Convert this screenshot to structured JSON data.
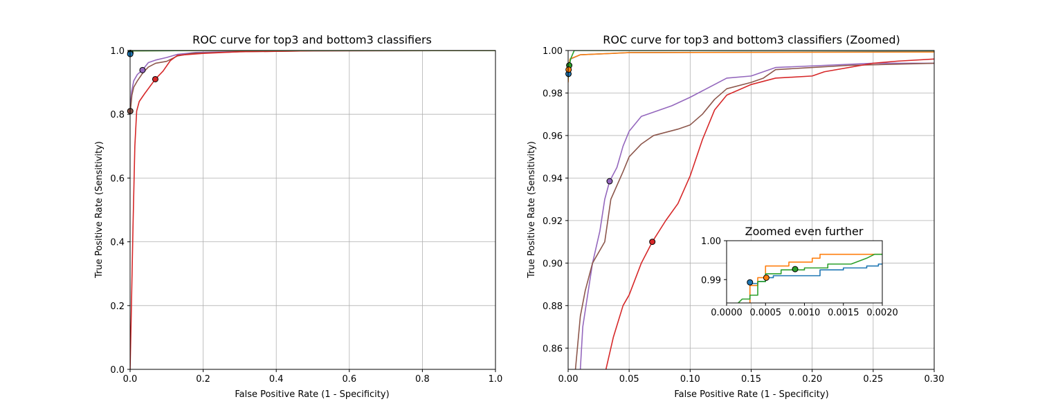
{
  "colors": {
    "blue": "#1f77b4",
    "orange": "#ff7f0e",
    "green": "#2ca02c",
    "red": "#d62728",
    "purple": "#9467bd",
    "brown": "#8c564b",
    "grid": "#b0b0b0",
    "background": "#ffffff"
  },
  "chart_data": [
    {
      "type": "line",
      "title": "ROC curve for top3 and bottom3 classifiers",
      "xlabel": "False Positive Rate (1 - Specificity)",
      "ylabel": "True Positive Rate (Sensitivity)",
      "xlim": [
        0,
        1
      ],
      "ylim": [
        0,
        1
      ],
      "grid": true,
      "xticks": [
        0.0,
        0.2,
        0.4,
        0.6,
        0.8,
        1.0
      ],
      "xtick_labels": [
        "0.0",
        "0.2",
        "0.4",
        "0.6",
        "0.8",
        "1.0"
      ],
      "yticks": [
        0.0,
        0.2,
        0.4,
        0.6,
        0.8,
        1.0
      ],
      "ytick_labels": [
        "0.0",
        "0.2",
        "0.4",
        "0.6",
        "0.8",
        "1.0"
      ],
      "series": [
        {
          "name": "purple",
          "color": "purple",
          "points": [
            [
              0,
              0.81
            ],
            [
              0.004,
              0.87
            ],
            [
              0.01,
              0.905
            ],
            [
              0.02,
              0.925
            ],
            [
              0.034,
              0.939
            ],
            [
              0.05,
              0.962
            ],
            [
              0.07,
              0.97
            ],
            [
              0.1,
              0.978
            ],
            [
              0.13,
              0.988
            ],
            [
              0.18,
              0.994
            ],
            [
              0.3,
              0.997
            ],
            [
              0.5,
              0.999
            ],
            [
              1,
              1
            ]
          ]
        },
        {
          "name": "brown",
          "color": "brown",
          "points": [
            [
              0,
              0.8
            ],
            [
              0.005,
              0.86
            ],
            [
              0.01,
              0.885
            ],
            [
              0.02,
              0.905
            ],
            [
              0.035,
              0.93
            ],
            [
              0.05,
              0.948
            ],
            [
              0.07,
              0.96
            ],
            [
              0.1,
              0.966
            ],
            [
              0.13,
              0.983
            ],
            [
              0.17,
              0.991
            ],
            [
              0.3,
              0.996
            ],
            [
              0.5,
              0.999
            ],
            [
              1,
              1
            ]
          ]
        },
        {
          "name": "red",
          "color": "red",
          "points": [
            [
              0,
              0
            ],
            [
              0.003,
              0.16
            ],
            [
              0.008,
              0.45
            ],
            [
              0.013,
              0.7
            ],
            [
              0.018,
              0.81
            ],
            [
              0.025,
              0.84
            ],
            [
              0.04,
              0.865
            ],
            [
              0.069,
              0.91
            ],
            [
              0.09,
              0.935
            ],
            [
              0.11,
              0.968
            ],
            [
              0.13,
              0.985
            ],
            [
              0.2,
              0.991
            ],
            [
              0.3,
              0.996
            ],
            [
              0.5,
              0.999
            ],
            [
              1,
              1
            ]
          ]
        },
        {
          "name": "blue",
          "color": "blue",
          "points": [
            [
              0,
              0.985
            ],
            [
              0.0003,
              0.989
            ],
            [
              0.002,
              0.996
            ],
            [
              0.01,
              0.999
            ],
            [
              0.2,
              1
            ],
            [
              1,
              1
            ]
          ]
        },
        {
          "name": "orange",
          "color": "orange",
          "points": [
            [
              0,
              0.985
            ],
            [
              0.0004,
              0.99
            ],
            [
              0.0015,
              0.997
            ],
            [
              0.01,
              0.999
            ],
            [
              0.2,
              1
            ],
            [
              1,
              1
            ]
          ]
        },
        {
          "name": "green",
          "color": "green",
          "points": [
            [
              0,
              0.988
            ],
            [
              0.0009,
              0.993
            ],
            [
              0.002,
              0.996
            ],
            [
              0.01,
              0.999
            ],
            [
              0.2,
              1
            ],
            [
              1,
              1
            ]
          ]
        }
      ],
      "markers": [
        {
          "series": "green",
          "x": 0.0009,
          "y": 0.9925
        },
        {
          "series": "blue",
          "x": 0.0003,
          "y": 0.989
        },
        {
          "series": "purple",
          "x": 0.034,
          "y": 0.9385
        },
        {
          "series": "red",
          "x": 0.069,
          "y": 0.91
        },
        {
          "series": "brown",
          "x": 0.0005,
          "y": 0.81
        }
      ]
    },
    {
      "type": "line",
      "title": "ROC curve for top3 and bottom3 classifiers (Zoomed)",
      "xlabel": "False Positive Rate (1 - Specificity)",
      "ylabel": "True Positive Rate (Sensitivity)",
      "xlim": [
        0,
        0.3
      ],
      "ylim": [
        0.85,
        1.0
      ],
      "grid": true,
      "xticks": [
        0.0,
        0.05,
        0.1,
        0.15,
        0.2,
        0.25,
        0.3
      ],
      "xtick_labels": [
        "0.00",
        "0.05",
        "0.10",
        "0.15",
        "0.20",
        "0.25",
        "0.30"
      ],
      "yticks": [
        0.86,
        0.88,
        0.9,
        0.92,
        0.94,
        0.96,
        0.98,
        1.0
      ],
      "ytick_labels": [
        "0.86",
        "0.88",
        "0.90",
        "0.92",
        "0.94",
        "0.96",
        "0.98",
        "1.00"
      ],
      "series": [
        {
          "name": "purple",
          "color": "purple",
          "points": [
            [
              0.01,
              0.85
            ],
            [
              0.012,
              0.87
            ],
            [
              0.016,
              0.885
            ],
            [
              0.02,
              0.9
            ],
            [
              0.026,
              0.915
            ],
            [
              0.03,
              0.93
            ],
            [
              0.034,
              0.9385
            ],
            [
              0.04,
              0.945
            ],
            [
              0.045,
              0.955
            ],
            [
              0.05,
              0.962
            ],
            [
              0.06,
              0.969
            ],
            [
              0.07,
              0.971
            ],
            [
              0.085,
              0.974
            ],
            [
              0.1,
              0.978
            ],
            [
              0.11,
              0.981
            ],
            [
              0.13,
              0.987
            ],
            [
              0.15,
              0.988
            ],
            [
              0.17,
              0.992
            ],
            [
              0.21,
              0.993
            ],
            [
              0.25,
              0.994
            ],
            [
              0.3,
              0.994
            ]
          ]
        },
        {
          "name": "brown",
          "color": "brown",
          "points": [
            [
              0.006,
              0.85
            ],
            [
              0.01,
              0.875
            ],
            [
              0.014,
              0.887
            ],
            [
              0.02,
              0.9
            ],
            [
              0.03,
              0.91
            ],
            [
              0.035,
              0.93
            ],
            [
              0.045,
              0.943
            ],
            [
              0.05,
              0.95
            ],
            [
              0.06,
              0.956
            ],
            [
              0.07,
              0.96
            ],
            [
              0.09,
              0.963
            ],
            [
              0.1,
              0.965
            ],
            [
              0.11,
              0.97
            ],
            [
              0.12,
              0.977
            ],
            [
              0.13,
              0.982
            ],
            [
              0.15,
              0.985
            ],
            [
              0.16,
              0.987
            ],
            [
              0.17,
              0.991
            ],
            [
              0.2,
              0.992
            ],
            [
              0.23,
              0.993
            ],
            [
              0.3,
              0.994
            ]
          ]
        },
        {
          "name": "red",
          "color": "red",
          "points": [
            [
              0.031,
              0.85
            ],
            [
              0.037,
              0.865
            ],
            [
              0.045,
              0.88
            ],
            [
              0.05,
              0.885
            ],
            [
              0.06,
              0.9
            ],
            [
              0.069,
              0.91
            ],
            [
              0.08,
              0.92
            ],
            [
              0.09,
              0.928
            ],
            [
              0.1,
              0.941
            ],
            [
              0.11,
              0.958
            ],
            [
              0.12,
              0.972
            ],
            [
              0.13,
              0.979
            ],
            [
              0.15,
              0.984
            ],
            [
              0.17,
              0.987
            ],
            [
              0.2,
              0.988
            ],
            [
              0.21,
              0.99
            ],
            [
              0.25,
              0.994
            ],
            [
              0.27,
              0.995
            ],
            [
              0.3,
              0.996
            ]
          ]
        },
        {
          "name": "blue",
          "color": "blue",
          "points": [
            [
              0,
              0.987
            ],
            [
              0.0003,
              0.989
            ],
            [
              0.0005,
              0.991
            ],
            [
              0.002,
              0.996
            ],
            [
              0.01,
              0.998
            ],
            [
              0.05,
              0.999
            ],
            [
              0.3,
              0.9995
            ]
          ]
        },
        {
          "name": "orange",
          "color": "orange",
          "points": [
            [
              0,
              0.985
            ],
            [
              0.0004,
              0.9905
            ],
            [
              0.0006,
              0.993
            ],
            [
              0.0015,
              0.996
            ],
            [
              0.01,
              0.998
            ],
            [
              0.05,
              0.999
            ],
            [
              0.3,
              0.9993
            ]
          ]
        },
        {
          "name": "green",
          "color": "green",
          "points": [
            [
              0,
              0.987
            ],
            [
              0.0009,
              0.9925
            ],
            [
              0.002,
              0.996
            ],
            [
              0.005,
              1.0
            ],
            [
              0.3,
              1.0
            ]
          ]
        }
      ],
      "markers": [
        {
          "series": "purple",
          "x": 0.034,
          "y": 0.9385
        },
        {
          "series": "red",
          "x": 0.069,
          "y": 0.91
        },
        {
          "series": "green",
          "x": 0.0009,
          "y": 0.993
        },
        {
          "series": "blue",
          "x": 0.0003,
          "y": 0.989
        },
        {
          "series": "orange",
          "x": 0.0004,
          "y": 0.991
        }
      ]
    },
    {
      "type": "line",
      "title": "Zoomed even further",
      "xlabel": "",
      "ylabel": "",
      "xlim": [
        0,
        0.002
      ],
      "ylim": [
        0.984,
        1.0
      ],
      "grid": false,
      "xticks": [
        0.0,
        0.0005,
        0.001,
        0.0015,
        0.002
      ],
      "xtick_labels": [
        "0.0000",
        "0.0005",
        "0.0010",
        "0.0015",
        "0.0020"
      ],
      "yticks": [
        0.99,
        1.0
      ],
      "ytick_labels": [
        "0.99",
        "1.00"
      ],
      "series": [
        {
          "name": "blue",
          "color": "blue",
          "points": [
            [
              0.0003,
              0.984
            ],
            [
              0.0003,
              0.989
            ],
            [
              0.0004,
              0.989
            ],
            [
              0.0004,
              0.9895
            ],
            [
              0.0005,
              0.9895
            ],
            [
              0.0005,
              0.9905
            ],
            [
              0.0006,
              0.9905
            ],
            [
              0.0006,
              0.991
            ],
            [
              0.0012,
              0.991
            ],
            [
              0.0012,
              0.9925
            ],
            [
              0.0015,
              0.9925
            ],
            [
              0.0015,
              0.993
            ],
            [
              0.0018,
              0.993
            ],
            [
              0.0018,
              0.9935
            ],
            [
              0.00195,
              0.9935
            ],
            [
              0.00195,
              0.994
            ],
            [
              0.002,
              0.994
            ]
          ]
        },
        {
          "name": "orange",
          "color": "orange",
          "points": [
            [
              0.0003,
              0.984
            ],
            [
              0.0003,
              0.9885
            ],
            [
              0.0004,
              0.9885
            ],
            [
              0.0004,
              0.9905
            ],
            [
              0.0005,
              0.9905
            ],
            [
              0.0005,
              0.9935
            ],
            [
              0.0008,
              0.9935
            ],
            [
              0.0008,
              0.9945
            ],
            [
              0.0011,
              0.9945
            ],
            [
              0.0011,
              0.9955
            ],
            [
              0.0012,
              0.9955
            ],
            [
              0.0012,
              0.9965
            ],
            [
              0.002,
              0.9965
            ]
          ]
        },
        {
          "name": "green",
          "color": "green",
          "points": [
            [
              0.00015,
              0.984
            ],
            [
              0.0002,
              0.985
            ],
            [
              0.0003,
              0.985
            ],
            [
              0.0003,
              0.986
            ],
            [
              0.0004,
              0.986
            ],
            [
              0.0004,
              0.9895
            ],
            [
              0.0005,
              0.9895
            ],
            [
              0.0005,
              0.9915
            ],
            [
              0.0007,
              0.9915
            ],
            [
              0.0007,
              0.9925
            ],
            [
              0.001,
              0.9925
            ],
            [
              0.001,
              0.993
            ],
            [
              0.0013,
              0.993
            ],
            [
              0.0013,
              0.994
            ],
            [
              0.0016,
              0.994
            ],
            [
              0.0018,
              0.9955
            ],
            [
              0.0019,
              0.9965
            ],
            [
              0.002,
              0.9965
            ]
          ]
        }
      ],
      "markers": [
        {
          "series": "blue",
          "x": 0.0003,
          "y": 0.9893
        },
        {
          "series": "orange",
          "x": 0.00051,
          "y": 0.9905
        },
        {
          "series": "green",
          "x": 0.00088,
          "y": 0.9927
        }
      ]
    }
  ]
}
